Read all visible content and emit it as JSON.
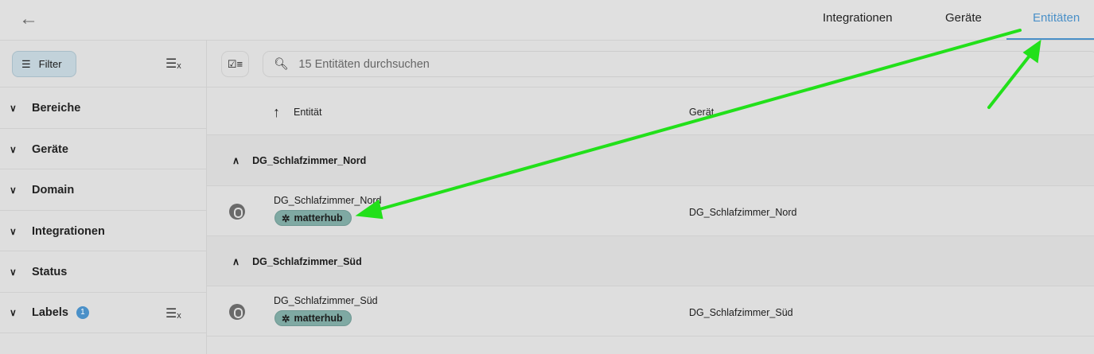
{
  "topbar": {
    "back_icon": "arrow-left-icon",
    "tabs": [
      {
        "label": "Integrationen"
      },
      {
        "label": "Geräte"
      },
      {
        "label": "Entitäten",
        "active": true
      }
    ]
  },
  "sidebar": {
    "filter_label": "Filter",
    "sections": [
      {
        "label": "Bereiche"
      },
      {
        "label": "Geräte"
      },
      {
        "label": "Domain"
      },
      {
        "label": "Integrationen"
      },
      {
        "label": "Status"
      },
      {
        "label": "Labels",
        "badge": "1"
      }
    ]
  },
  "search": {
    "placeholder": "15 Entitäten durchsuchen"
  },
  "table": {
    "columns": [
      "Entität",
      "Gerät"
    ],
    "groups": [
      {
        "title": "DG_Schlafzimmer_Nord",
        "rows": [
          {
            "entity": "DG_Schlafzimmer_Nord",
            "label": "matterhub",
            "device": "DG_Schlafzimmer_Nord"
          }
        ]
      },
      {
        "title": "DG_Schlafzimmer_Süd",
        "rows": [
          {
            "entity": "DG_Schlafzimmer_Süd",
            "label": "matterhub",
            "device": "DG_Schlafzimmer_Süd"
          }
        ]
      }
    ]
  },
  "colors": {
    "accent": "#4a90c8",
    "chip": "#7fa9a3",
    "annotation_arrow": "#22e01a"
  }
}
